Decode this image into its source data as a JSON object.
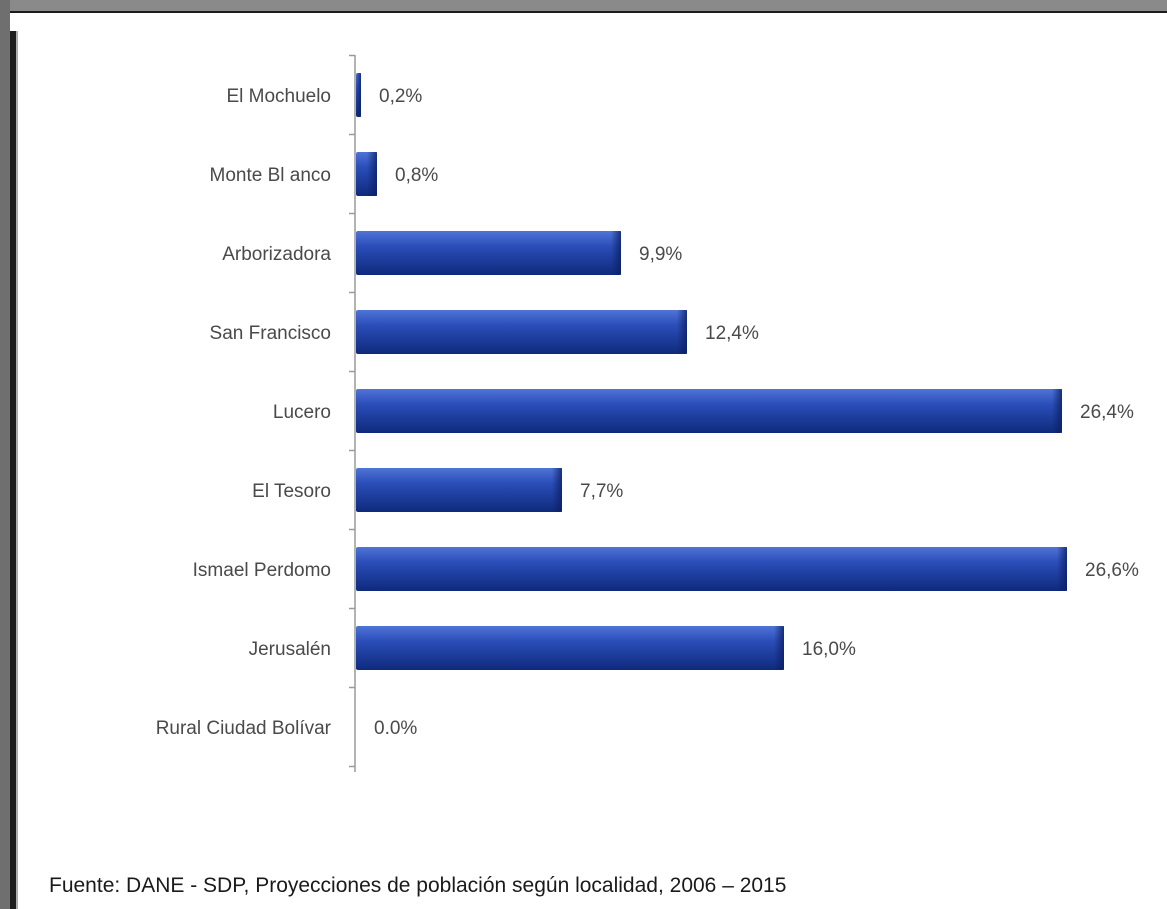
{
  "chart_data": {
    "type": "bar",
    "orientation": "horizontal",
    "categories": [
      "El Mochuelo",
      "Monte Bl anco",
      "Arborizadora",
      "San Francisco",
      "Lucero",
      "El Tesoro",
      "Ismael Perdomo",
      "Jerusalén",
      "Rural Ciudad Bolívar"
    ],
    "values": [
      0.2,
      0.8,
      9.9,
      12.4,
      26.4,
      7.7,
      26.6,
      16.0,
      0.0
    ],
    "value_labels": [
      "0,2%",
      "0,8%",
      "9,9%",
      "12,4%",
      "26,4%",
      "7,7%",
      "26,6%",
      "16,0%",
      "0.0%"
    ],
    "xlim": [
      0,
      26.6
    ],
    "grid": false,
    "bar_color": "#1f3f9e"
  },
  "source_note": "Fuente: DANE - SDP, Proyecciones de población según localidad, 2006 – 2015"
}
